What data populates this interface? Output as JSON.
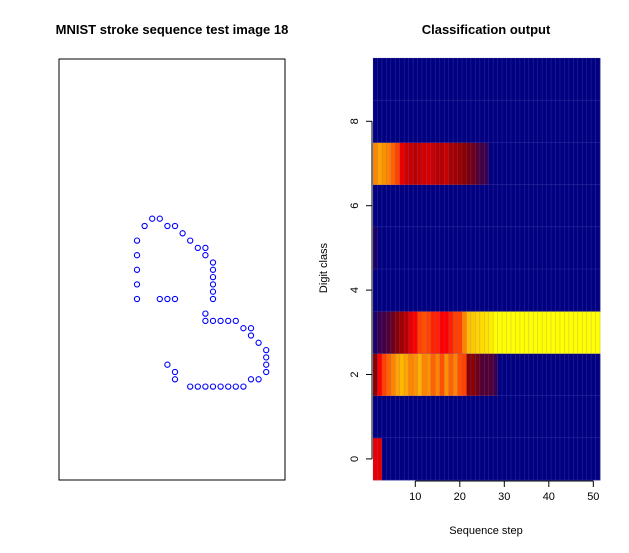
{
  "chart_data": [
    {
      "type": "scatter",
      "title": "MNIST stroke sequence test image 18",
      "color": "#0000ff",
      "points": [
        [
          0,
          0
        ],
        [
          0,
          -2
        ],
        [
          0,
          -4
        ],
        [
          0,
          -6
        ],
        [
          0,
          -8
        ],
        [
          1,
          -10
        ],
        [
          2,
          -11
        ],
        [
          3,
          -11
        ],
        [
          4,
          -10
        ],
        [
          5,
          -10
        ],
        [
          6,
          -9
        ],
        [
          7,
          -8
        ],
        [
          8,
          -7
        ],
        [
          9,
          -7
        ],
        [
          9,
          -6
        ],
        [
          10,
          -5
        ],
        [
          10,
          -4
        ],
        [
          10,
          -3
        ],
        [
          10,
          -2
        ],
        [
          10,
          -1
        ],
        [
          10,
          0
        ],
        [
          9,
          2
        ],
        [
          9,
          3
        ],
        [
          10,
          3
        ],
        [
          11,
          3
        ],
        [
          12,
          3
        ],
        [
          13,
          3
        ],
        [
          14,
          4
        ],
        [
          15,
          4
        ],
        [
          15,
          5
        ],
        [
          16,
          6
        ],
        [
          17,
          7
        ],
        [
          17,
          8
        ],
        [
          17,
          9
        ],
        [
          17,
          10
        ],
        [
          16,
          11
        ],
        [
          15,
          11
        ],
        [
          14,
          12
        ],
        [
          13,
          12
        ],
        [
          12,
          12
        ],
        [
          11,
          12
        ],
        [
          10,
          12
        ],
        [
          9,
          12
        ],
        [
          8,
          12
        ],
        [
          7,
          12
        ],
        [
          5,
          11
        ],
        [
          5,
          10
        ],
        [
          4,
          9
        ],
        [
          3,
          0
        ],
        [
          4,
          0
        ],
        [
          5,
          0
        ]
      ]
    },
    {
      "type": "heatmap",
      "title": "Classification output",
      "xlabel": "Sequence step",
      "ylabel": "Digit class",
      "x_ticks": [
        10,
        20,
        30,
        40,
        50
      ],
      "y_ticks": [
        0,
        2,
        4,
        6,
        8
      ],
      "n_steps": 51,
      "classes": [
        0,
        1,
        2,
        3,
        4,
        5,
        6,
        7,
        8,
        9
      ],
      "colormap": [
        "#000080",
        "#8b0000",
        "#ff0000",
        "#ffa500",
        "#ffff00"
      ],
      "z": {
        "0": [
          0.45,
          0.45
        ],
        "1": [],
        "2": [
          0.25,
          0.5,
          0.6,
          0.65,
          0.7,
          0.75,
          0.8,
          0.75,
          0.7,
          0.72,
          0.78,
          0.7,
          0.72,
          0.65,
          0.7,
          0.62,
          0.72,
          0.65,
          0.7,
          0.62,
          0.6,
          0.25,
          0.25,
          0.2,
          0.15,
          0.15,
          0.15,
          0.1
        ],
        "3": [
          0.05,
          0.1,
          0.12,
          0.15,
          0.2,
          0.25,
          0.3,
          0.35,
          0.45,
          0.5,
          0.6,
          0.62,
          0.6,
          0.55,
          0.55,
          0.5,
          0.5,
          0.55,
          0.6,
          0.6,
          0.7,
          0.82,
          0.85,
          0.88,
          0.9,
          0.92,
          0.95,
          1.0,
          1.0,
          1.0,
          1.0,
          1.0,
          1.0,
          1.0,
          1.0,
          1.0,
          1.0,
          1.0,
          1.0,
          1.0,
          1.0,
          1.0,
          1.0,
          1.0,
          1.0,
          1.0,
          1.0,
          1.0,
          1.0,
          1.0,
          1.0
        ],
        "4": [],
        "5": [
          0.05
        ],
        "6": [],
        "7": [
          0.7,
          0.75,
          0.72,
          0.7,
          0.65,
          0.6,
          0.45,
          0.4,
          0.38,
          0.35,
          0.38,
          0.4,
          0.42,
          0.38,
          0.35,
          0.35,
          0.38,
          0.32,
          0.3,
          0.28,
          0.25,
          0.22,
          0.2,
          0.15,
          0.12,
          0.1
        ],
        "8": [],
        "9": []
      }
    }
  ]
}
